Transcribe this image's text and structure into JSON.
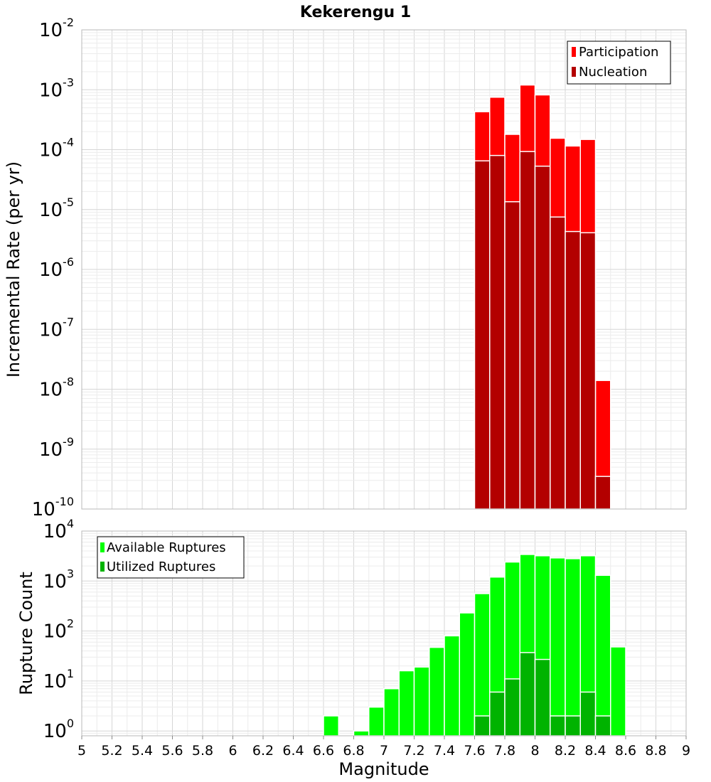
{
  "chart_data": [
    {
      "type": "bar",
      "title": "Kekerengu 1",
      "xlabel": "",
      "ylabel": "Incremental Rate (per yr)",
      "yscale": "log",
      "ylim": [
        1e-10,
        0.01
      ],
      "xlim": [
        5,
        9
      ],
      "grid": true,
      "legend_position": "top-right",
      "bin_width": 0.1,
      "y_ticks": [
        {
          "base": "10",
          "exp": "-10",
          "value": 1e-10
        },
        {
          "base": "10",
          "exp": "-9",
          "value": 1e-09
        },
        {
          "base": "10",
          "exp": "-8",
          "value": 1e-08
        },
        {
          "base": "10",
          "exp": "-7",
          "value": 1e-07
        },
        {
          "base": "10",
          "exp": "-6",
          "value": 1e-06
        },
        {
          "base": "10",
          "exp": "-5",
          "value": 1e-05
        },
        {
          "base": "10",
          "exp": "-4",
          "value": 0.0001
        },
        {
          "base": "10",
          "exp": "-3",
          "value": 0.001
        },
        {
          "base": "10",
          "exp": "-2",
          "value": 0.01
        }
      ],
      "series": [
        {
          "name": "Participation",
          "color": "#ff0000",
          "x": [
            7.65,
            7.75,
            7.85,
            7.95,
            8.05,
            8.15,
            8.25,
            8.35,
            8.45
          ],
          "values": [
            0.00043,
            0.00075,
            0.00018,
            0.0012,
            0.00082,
            0.000155,
            0.000115,
            0.000148,
            1.4e-08
          ]
        },
        {
          "name": "Nucleation",
          "color": "#b30000",
          "x": [
            7.65,
            7.75,
            7.85,
            7.95,
            8.05,
            8.15,
            8.25,
            8.35,
            8.45
          ],
          "values": [
            6.5e-05,
            8e-05,
            1.35e-05,
            9.3e-05,
            5.3e-05,
            7.5e-06,
            4.3e-06,
            4.1e-06,
            3.5e-10
          ]
        }
      ]
    },
    {
      "type": "bar",
      "title": "",
      "xlabel": "Magnitude",
      "ylabel": "Rupture Count",
      "yscale": "log",
      "ylim": [
        0.8,
        10000
      ],
      "xlim": [
        5,
        9
      ],
      "grid": true,
      "legend_position": "top-left",
      "bin_width": 0.1,
      "x_ticks": [
        "5",
        "5.2",
        "5.4",
        "5.6",
        "5.8",
        "6",
        "6.2",
        "6.4",
        "6.6",
        "6.8",
        "7",
        "7.2",
        "7.4",
        "7.6",
        "7.8",
        "8",
        "8.2",
        "8.4",
        "8.6",
        "8.8",
        "9"
      ],
      "y_ticks": [
        {
          "base": "10",
          "exp": "0",
          "value": 1
        },
        {
          "base": "10",
          "exp": "1",
          "value": 10
        },
        {
          "base": "10",
          "exp": "2",
          "value": 100
        },
        {
          "base": "10",
          "exp": "3",
          "value": 1000
        },
        {
          "base": "10",
          "exp": "4",
          "value": 10000
        }
      ],
      "series": [
        {
          "name": "Available Ruptures",
          "color": "#00ff00",
          "x": [
            6.65,
            6.85,
            6.95,
            7.05,
            7.15,
            7.25,
            7.35,
            7.45,
            7.55,
            7.65,
            7.75,
            7.85,
            7.95,
            8.05,
            8.15,
            8.25,
            8.35,
            8.45,
            8.55
          ],
          "values": [
            2,
            1,
            3,
            7,
            16,
            19,
            47,
            80,
            230,
            560,
            1200,
            2400,
            3400,
            3200,
            2900,
            2800,
            3200,
            1300,
            48
          ]
        },
        {
          "name": "Utilized Ruptures",
          "color": "#00b300",
          "x": [
            7.65,
            7.75,
            7.85,
            7.95,
            8.05,
            8.15,
            8.25,
            8.35,
            8.45
          ],
          "values": [
            2,
            6,
            11,
            37,
            27,
            2,
            2,
            6,
            2
          ]
        }
      ]
    }
  ]
}
